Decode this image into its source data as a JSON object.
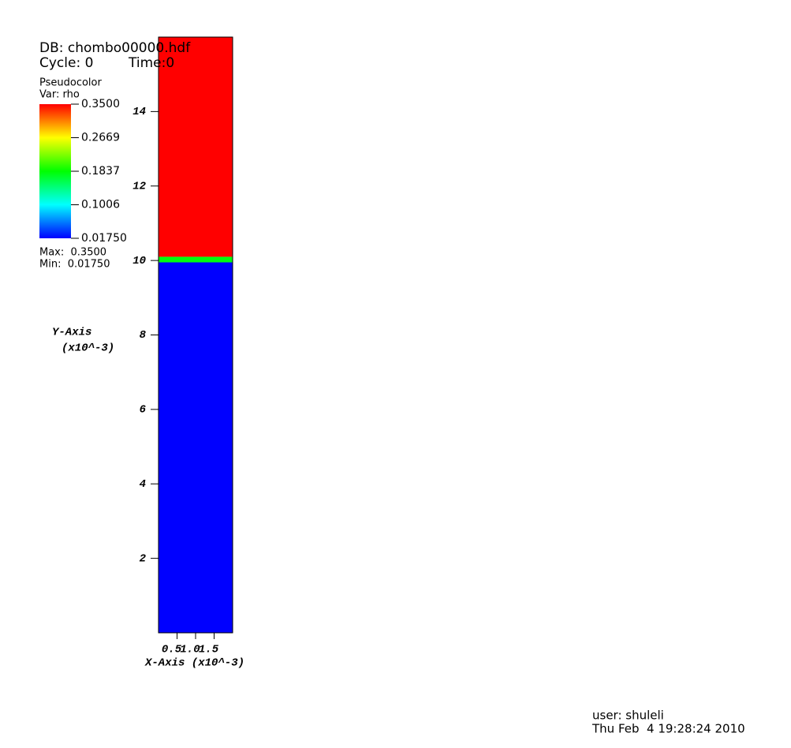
{
  "chart_data": {
    "type": "pseudocolor",
    "db": "DB: chombo00000.hdf",
    "cycle": "Cycle: 0",
    "time": "Time:0",
    "plot_name": "Pseudocolor",
    "var": "Var: rho",
    "max_label": "Max:  0.3500",
    "min_label": "Min:  0.01750",
    "y_label": "Y-Axis",
    "y_units": "(x10^-3)",
    "x_label": "X-Axis (x10^-3)",
    "xlim": [
      0,
      2
    ],
    "xticks": [
      0.5,
      {
        "value": 1,
        "label": "1.0"
      },
      1.5
    ],
    "ylim": [
      0,
      16
    ],
    "yticks": [
      2,
      4,
      6,
      8,
      10,
      12,
      14
    ],
    "band_edges": [
      0,
      9.95,
      10.1,
      16
    ],
    "values": [
      0.0175,
      0.18,
      0.35
    ],
    "clim": [
      0.0175,
      0.35
    ],
    "colormap": [
      "#0000ff",
      "#00ffff",
      "#00ff00",
      "#ffff00",
      "#ff0000"
    ],
    "colorbar_ticks": [
      {
        "value": 0.35,
        "label": "0.3500"
      },
      {
        "value": 0.2669,
        "label": "0.2669"
      },
      {
        "value": 0.1837,
        "label": "0.1837"
      },
      {
        "value": 0.1006,
        "label": "0.1006"
      },
      {
        "value": 0.0175,
        "label": "0.01750"
      }
    ],
    "user": "user: shuleli",
    "date": "Thu Feb  4 19:28:24 2010"
  }
}
